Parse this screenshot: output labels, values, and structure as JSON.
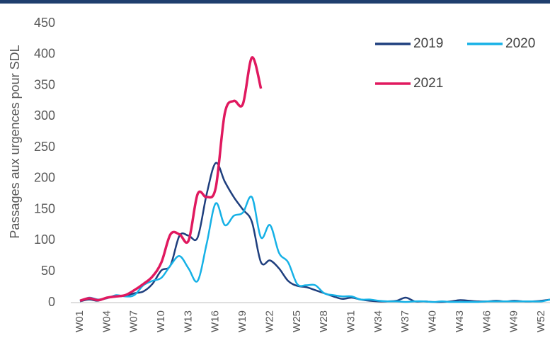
{
  "chart_data": {
    "type": "line",
    "y_label": "Passages aux urgences pour SDL",
    "categories": [
      "W01",
      null,
      null,
      "W04",
      null,
      null,
      "W07",
      null,
      null,
      "W10",
      null,
      null,
      "W13",
      null,
      null,
      "W16",
      null,
      null,
      "W19",
      null,
      null,
      "W22",
      null,
      null,
      "W25",
      null,
      null,
      "W28",
      null,
      null,
      "W31",
      null,
      null,
      "W34",
      null,
      null,
      "W37",
      null,
      null,
      "W40",
      null,
      null,
      "W43",
      null,
      null,
      "W46",
      null,
      null,
      "W49",
      null,
      null,
      "W52",
      null
    ],
    "series": [
      {
        "name": "2019",
        "color": "#1f3f7e",
        "values": [
          2,
          5,
          3,
          8,
          10,
          11,
          15,
          18,
          30,
          52,
          60,
          108,
          108,
          105,
          175,
          225,
          195,
          170,
          150,
          130,
          65,
          68,
          55,
          35,
          27,
          25,
          20,
          15,
          10,
          6,
          8,
          5,
          3,
          2,
          2,
          3,
          8,
          2,
          2,
          1,
          1,
          2,
          4,
          3,
          2,
          2,
          3,
          2,
          3,
          2,
          2,
          3,
          5
        ]
      },
      {
        "name": "2020",
        "color": "#16b1e6",
        "values": [
          2,
          8,
          5,
          7,
          12,
          10,
          12,
          28,
          35,
          40,
          60,
          75,
          55,
          35,
          95,
          160,
          125,
          140,
          145,
          170,
          105,
          125,
          80,
          65,
          30,
          28,
          28,
          15,
          12,
          10,
          10,
          5,
          5,
          3,
          2,
          2,
          1,
          2,
          2,
          1,
          2,
          1,
          1,
          1,
          1,
          2,
          2,
          2,
          2,
          2,
          2,
          2,
          5
        ]
      },
      {
        "name": "2021",
        "color": "#e0195f",
        "values": [
          3,
          7,
          4,
          8,
          10,
          12,
          20,
          30,
          42,
          65,
          110,
          110,
          100,
          175,
          170,
          185,
          305,
          325,
          320,
          395,
          345,
          null,
          null,
          null,
          null,
          null,
          null,
          null,
          null,
          null,
          null,
          null,
          null,
          null,
          null,
          null,
          null,
          null,
          null,
          null,
          null,
          null,
          null,
          null,
          null,
          null,
          null,
          null,
          null,
          null,
          null,
          null,
          null
        ]
      }
    ],
    "ylim": [
      0,
      450
    ],
    "yticks": [
      0,
      50,
      100,
      150,
      200,
      250,
      300,
      350,
      400,
      450
    ]
  }
}
